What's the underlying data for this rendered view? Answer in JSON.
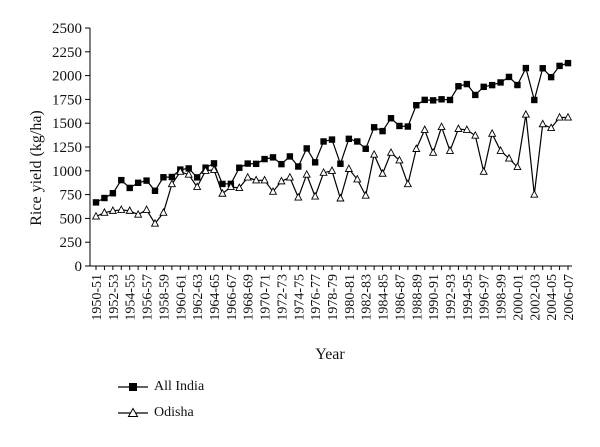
{
  "chart_data": {
    "type": "line",
    "title": "",
    "xlabel": "Year",
    "ylabel": "Rice yield (kg/ha)",
    "ylim": [
      0,
      2500
    ],
    "yticks": [
      0,
      250,
      500,
      750,
      1000,
      1250,
      1500,
      1750,
      2000,
      2250,
      2500
    ],
    "x_tick_labels": [
      "1950-51",
      "1952-53",
      "1954-55",
      "1956-57",
      "1958-59",
      "1960-61",
      "1962-63",
      "1964-65",
      "1966-67",
      "1968-69",
      "1970-71",
      "1972-73",
      "1974-75",
      "1976-77",
      "1978-79",
      "1980-81",
      "1982-83",
      "1984-85",
      "1986-87",
      "1988-89",
      "1990-91",
      "1992-93",
      "1994-95",
      "1996-97",
      "1998-99",
      "2000-01",
      "2002-03",
      "2004-05",
      "2006-07"
    ],
    "categories": [
      "1950-51",
      "1951-52",
      "1952-53",
      "1953-54",
      "1954-55",
      "1955-56",
      "1956-57",
      "1957-58",
      "1958-59",
      "1959-60",
      "1960-61",
      "1961-62",
      "1962-63",
      "1963-64",
      "1964-65",
      "1965-66",
      "1966-67",
      "1967-68",
      "1968-69",
      "1969-70",
      "1970-71",
      "1971-72",
      "1972-73",
      "1973-74",
      "1974-75",
      "1975-76",
      "1976-77",
      "1977-78",
      "1978-79",
      "1979-80",
      "1980-81",
      "1981-82",
      "1982-83",
      "1983-84",
      "1984-85",
      "1985-86",
      "1986-87",
      "1987-88",
      "1988-89",
      "1989-90",
      "1990-91",
      "1991-92",
      "1992-93",
      "1993-94",
      "1994-95",
      "1995-96",
      "1996-97",
      "1997-98",
      "1998-99",
      "1999-00",
      "2000-01",
      "2001-02",
      "2002-03",
      "2003-04",
      "2004-05",
      "2005-06",
      "2006-07"
    ],
    "grid": false,
    "legend_position": "bottom-left",
    "series": [
      {
        "name": "All India",
        "marker": "square",
        "values": [
          668,
          714,
          764,
          902,
          820,
          874,
          897,
          790,
          932,
          935,
          1013,
          1025,
          931,
          1033,
          1078,
          862,
          863,
          1032,
          1076,
          1073,
          1123,
          1141,
          1070,
          1151,
          1045,
          1235,
          1089,
          1308,
          1328,
          1074,
          1336,
          1308,
          1231,
          1457,
          1417,
          1552,
          1471,
          1465,
          1689,
          1745,
          1740,
          1751,
          1744,
          1888,
          1911,
          1797,
          1882,
          1900,
          1928,
          1986,
          1901,
          2079,
          1744,
          2077,
          1984,
          2102,
          2131
        ]
      },
      {
        "name": "Odisha",
        "marker": "triangle",
        "values": [
          520,
          560,
          580,
          590,
          580,
          540,
          590,
          445,
          560,
          860,
          990,
          960,
          830,
          1000,
          1010,
          760,
          830,
          820,
          930,
          900,
          900,
          780,
          890,
          930,
          720,
          960,
          730,
          980,
          1000,
          710,
          1020,
          910,
          740,
          1170,
          970,
          1190,
          1110,
          860,
          1230,
          1430,
          1190,
          1460,
          1210,
          1440,
          1430,
          1370,
          990,
          1390,
          1210,
          1130,
          1040,
          1590,
          750,
          1490,
          1450,
          1560,
          1560
        ]
      }
    ]
  },
  "legend": {
    "items": [
      {
        "label": "All India"
      },
      {
        "label": "Odisha"
      }
    ]
  },
  "colors": {
    "line": "#000000",
    "background": "#ffffff"
  }
}
